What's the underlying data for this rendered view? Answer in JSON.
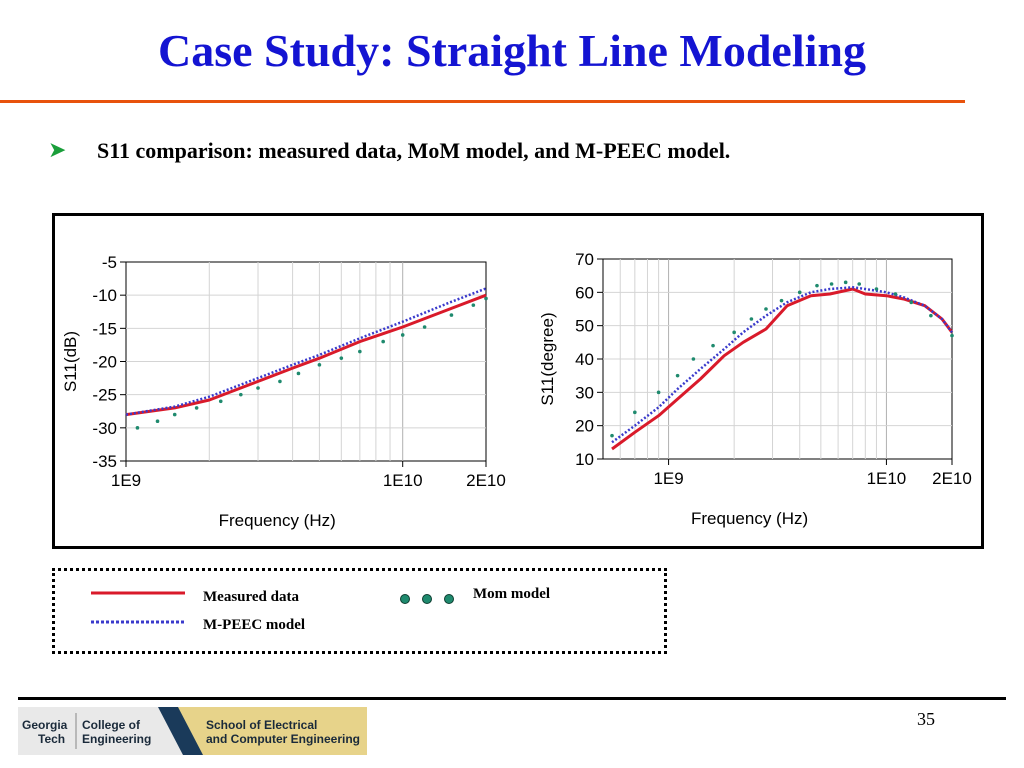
{
  "slide": {
    "title": "Case Study: Straight Line Modeling",
    "bullet_icon": "arrow-bullet-icon",
    "subtitle": "S11 comparison: measured data, MoM model, and M-PEEC model.",
    "page_number": "35"
  },
  "colors": {
    "title": "#1414d2",
    "rule": "#e8520c",
    "measured": "#d91a2a",
    "mpeec": "#3a3acc",
    "mom": "#1f8a6e"
  },
  "legend": {
    "measured_label": "Measured data",
    "mpeec_label": "M-PEEC model",
    "mom_label": "Mom model"
  },
  "logo": {
    "text_left_1": "Georgia",
    "text_left_2": "Tech",
    "text_mid_1": "College of",
    "text_mid_2": "Engineering",
    "text_right_1": "School of Electrical",
    "text_right_2": "and Computer Engineering"
  },
  "chart_data": [
    {
      "type": "line",
      "xlabel": "Frequency (Hz)",
      "ylabel": "S11(dB)",
      "x_scale": "log",
      "xlim": [
        1000000000.0,
        20000000000.0
      ],
      "ylim": [
        -35,
        -5
      ],
      "x_ticks": [
        {
          "value": 1000000000.0,
          "label": "1E9"
        },
        {
          "value": 10000000000.0,
          "label": "1E10"
        },
        {
          "value": 20000000000.0,
          "label": "2E10"
        }
      ],
      "y_ticks": [
        {
          "value": -5,
          "label": "-5"
        },
        {
          "value": -10,
          "label": "-10"
        },
        {
          "value": -15,
          "label": "-15"
        },
        {
          "value": -20,
          "label": "-20"
        },
        {
          "value": -25,
          "label": "-25"
        },
        {
          "value": -30,
          "label": "-30"
        },
        {
          "value": -35,
          "label": "-35"
        }
      ],
      "grid": true,
      "series": [
        {
          "name": "Measured data",
          "style": "solid",
          "x": [
            1000000000.0,
            1500000000.0,
            2000000000.0,
            3000000000.0,
            4000000000.0,
            5000000000.0,
            7000000000.0,
            10000000000.0,
            15000000000.0,
            20000000000.0
          ],
          "y": [
            -28,
            -27,
            -25.8,
            -23,
            -21,
            -19.5,
            -17,
            -14.8,
            -12,
            -10
          ]
        },
        {
          "name": "M-PEEC model",
          "style": "dotted",
          "x": [
            1000000000.0,
            1500000000.0,
            2000000000.0,
            3000000000.0,
            4000000000.0,
            5000000000.0,
            7000000000.0,
            10000000000.0,
            15000000000.0,
            20000000000.0
          ],
          "y": [
            -28,
            -26.8,
            -25.3,
            -22.5,
            -20.5,
            -19,
            -16.5,
            -14,
            -11,
            -9
          ]
        },
        {
          "name": "Mom model",
          "style": "markers",
          "x": [
            1100000000.0,
            1300000000.0,
            1500000000.0,
            1800000000.0,
            2200000000.0,
            2600000000.0,
            3000000000.0,
            3600000000.0,
            4200000000.0,
            5000000000.0,
            6000000000.0,
            7000000000.0,
            8500000000.0,
            10000000000.0,
            12000000000.0,
            15000000000.0,
            18000000000.0,
            20000000000.0
          ],
          "y": [
            -30,
            -29,
            -28,
            -27,
            -26,
            -25,
            -24,
            -23,
            -21.8,
            -20.5,
            -19.5,
            -18.5,
            -17,
            -16,
            -14.8,
            -13,
            -11.5,
            -10.5
          ]
        }
      ]
    },
    {
      "type": "line",
      "xlabel": "Frequency (Hz)",
      "ylabel": "S11(degree)",
      "x_scale": "log",
      "xlim": [
        500000000.0,
        20000000000.0
      ],
      "ylim": [
        10,
        70
      ],
      "x_ticks": [
        {
          "value": 1000000000.0,
          "label": "1E9"
        },
        {
          "value": 10000000000.0,
          "label": "1E10"
        },
        {
          "value": 20000000000.0,
          "label": "2E10"
        }
      ],
      "y_ticks": [
        {
          "value": 10,
          "label": "10"
        },
        {
          "value": 20,
          "label": "20"
        },
        {
          "value": 30,
          "label": "30"
        },
        {
          "value": 40,
          "label": "40"
        },
        {
          "value": 50,
          "label": "50"
        },
        {
          "value": 60,
          "label": "60"
        },
        {
          "value": 70,
          "label": "70"
        }
      ],
      "grid": true,
      "series": [
        {
          "name": "Measured data",
          "style": "solid",
          "x": [
            550000000.0,
            700000000.0,
            900000000.0,
            1100000000.0,
            1400000000.0,
            1800000000.0,
            2200000000.0,
            2800000000.0,
            3500000000.0,
            4500000000.0,
            5500000000.0,
            7000000000.0,
            8000000000.0,
            10000000000.0,
            12000000000.0,
            15000000000.0,
            18000000000.0,
            20000000000.0
          ],
          "y": [
            13,
            18,
            23,
            28,
            34,
            41,
            45,
            49,
            56,
            59,
            59.5,
            61,
            59.5,
            59,
            58,
            56,
            52,
            48
          ]
        },
        {
          "name": "M-PEEC model",
          "style": "dotted",
          "x": [
            550000000.0,
            700000000.0,
            900000000.0,
            1100000000.0,
            1400000000.0,
            1800000000.0,
            2200000000.0,
            2800000000.0,
            3500000000.0,
            4500000000.0,
            5500000000.0,
            7000000000.0,
            8000000000.0,
            10000000000.0,
            12000000000.0,
            15000000000.0,
            18000000000.0,
            20000000000.0
          ],
          "y": [
            15,
            20,
            25.5,
            31,
            37,
            43,
            48,
            53,
            57,
            60,
            61,
            61.5,
            61,
            60,
            58.5,
            56,
            52,
            48
          ]
        },
        {
          "name": "Mom model",
          "style": "markers",
          "x": [
            550000000.0,
            700000000.0,
            900000000.0,
            1100000000.0,
            1300000000.0,
            1600000000.0,
            2000000000.0,
            2400000000.0,
            2800000000.0,
            3300000000.0,
            4000000000.0,
            4800000000.0,
            5600000000.0,
            6500000000.0,
            7500000000.0,
            9000000000.0,
            11000000000.0,
            13000000000.0,
            16000000000.0,
            20000000000.0
          ],
          "y": [
            17,
            24,
            30,
            35,
            40,
            44,
            48,
            52,
            55,
            57.5,
            60,
            62,
            62.5,
            63,
            62.5,
            61,
            59.5,
            57,
            53,
            47
          ]
        }
      ]
    }
  ]
}
